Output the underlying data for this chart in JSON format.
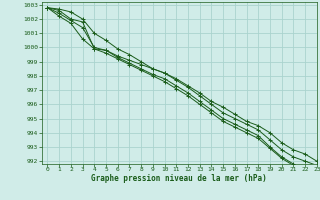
{
  "title": "Graphe pression niveau de la mer (hPa)",
  "background_color": "#d0ece8",
  "grid_color": "#aad4ce",
  "line_color": "#1a5c1a",
  "xlim": [
    -0.5,
    23
  ],
  "ylim": [
    991.8,
    1003.2
  ],
  "ytick_labels": [
    "992",
    "993",
    "994",
    "995",
    "996",
    "997",
    "998",
    "999",
    "1000",
    "1001",
    "1002",
    "1003"
  ],
  "ytick_vals": [
    992,
    993,
    994,
    995,
    996,
    997,
    998,
    999,
    1000,
    1001,
    1002,
    1003
  ],
  "xtick_vals": [
    0,
    1,
    2,
    3,
    4,
    5,
    6,
    7,
    8,
    9,
    10,
    11,
    12,
    13,
    14,
    15,
    16,
    17,
    18,
    19,
    20,
    21,
    22,
    23
  ],
  "series": [
    [
      1002.8,
      1002.7,
      1002.5,
      1002.0,
      1001.0,
      1000.5,
      999.9,
      999.5,
      999.0,
      998.5,
      998.2,
      997.8,
      997.3,
      996.8,
      996.2,
      995.8,
      995.3,
      994.8,
      994.5,
      994.0,
      993.3,
      992.8,
      992.5,
      992.0
    ],
    [
      1002.8,
      1002.6,
      1002.0,
      1001.8,
      999.9,
      999.8,
      999.4,
      999.1,
      998.8,
      998.5,
      998.2,
      997.7,
      997.2,
      996.6,
      996.0,
      995.4,
      995.0,
      994.6,
      994.2,
      993.5,
      992.8,
      992.3,
      992.0,
      991.7
    ],
    [
      1002.8,
      1002.4,
      1001.9,
      1001.4,
      1000.0,
      999.8,
      999.3,
      998.9,
      998.5,
      998.1,
      997.8,
      997.3,
      996.8,
      996.2,
      995.6,
      995.0,
      994.6,
      994.2,
      993.8,
      993.0,
      992.3,
      991.8,
      991.5,
      991.4
    ],
    [
      1002.8,
      1002.2,
      1001.7,
      1000.6,
      999.9,
      999.6,
      999.2,
      998.8,
      998.4,
      998.0,
      997.6,
      997.1,
      996.6,
      996.0,
      995.4,
      994.8,
      994.4,
      994.0,
      993.6,
      992.9,
      992.2,
      991.7,
      991.4,
      991.3
    ]
  ]
}
